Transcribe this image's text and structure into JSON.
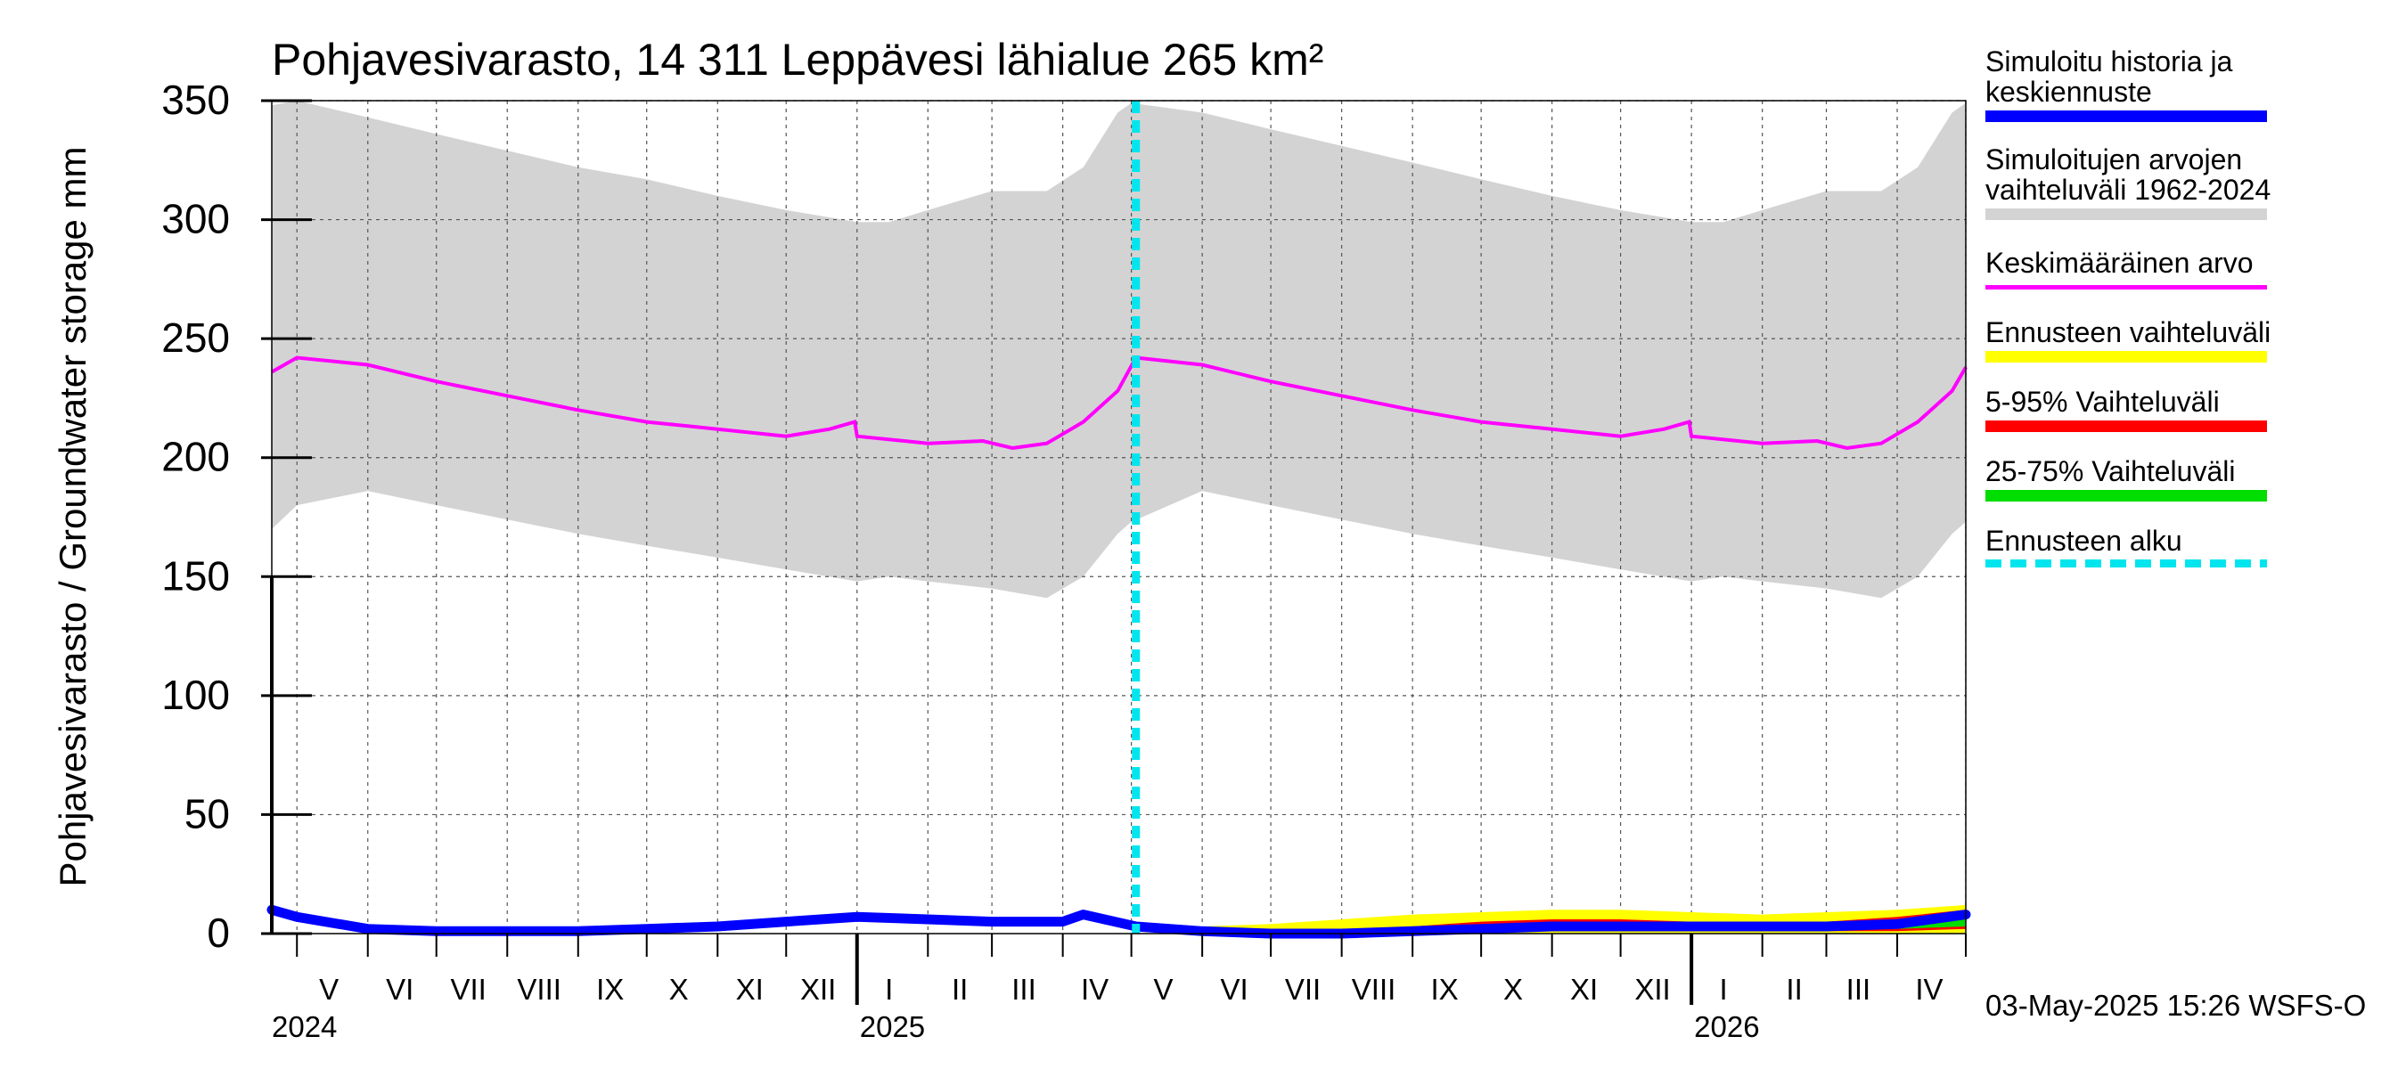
{
  "chart_data": {
    "type": "area",
    "title": "Pohjavesivarasto, 14 311 Leppävesi lähialue 265 km²",
    "ylabel": "Pohjavesivarasto / Groundwater storage   mm",
    "ylim": [
      0,
      350
    ],
    "yticks": [
      0,
      50,
      100,
      150,
      200,
      250,
      300,
      350
    ],
    "x_range": [
      "2024-04-20",
      "2026-05-01"
    ],
    "month_labels": [
      {
        "label": "V",
        "date": "2024-05-15"
      },
      {
        "label": "VI",
        "date": "2024-06-15"
      },
      {
        "label": "VII",
        "date": "2024-07-15"
      },
      {
        "label": "VIII",
        "date": "2024-08-15"
      },
      {
        "label": "IX",
        "date": "2024-09-15"
      },
      {
        "label": "X",
        "date": "2024-10-15"
      },
      {
        "label": "XI",
        "date": "2024-11-15"
      },
      {
        "label": "XII",
        "date": "2024-12-15"
      },
      {
        "label": "I",
        "date": "2025-01-15"
      },
      {
        "label": "II",
        "date": "2025-02-15"
      },
      {
        "label": "III",
        "date": "2025-03-15"
      },
      {
        "label": "IV",
        "date": "2025-04-15"
      },
      {
        "label": "V",
        "date": "2025-05-15"
      },
      {
        "label": "VI",
        "date": "2025-06-15"
      },
      {
        "label": "VII",
        "date": "2025-07-15"
      },
      {
        "label": "VIII",
        "date": "2025-08-15"
      },
      {
        "label": "IX",
        "date": "2025-09-15"
      },
      {
        "label": "X",
        "date": "2025-10-15"
      },
      {
        "label": "XI",
        "date": "2025-11-15"
      },
      {
        "label": "XII",
        "date": "2025-12-15"
      },
      {
        "label": "I",
        "date": "2026-01-15"
      },
      {
        "label": "II",
        "date": "2026-02-15"
      },
      {
        "label": "III",
        "date": "2026-03-15"
      },
      {
        "label": "IV",
        "date": "2026-04-15"
      }
    ],
    "month_boundaries": [
      "2024-05-01",
      "2024-06-01",
      "2024-07-01",
      "2024-08-01",
      "2024-09-01",
      "2024-10-01",
      "2024-11-01",
      "2024-12-01",
      "2025-01-01",
      "2025-02-01",
      "2025-03-01",
      "2025-04-01",
      "2025-05-01",
      "2025-06-01",
      "2025-07-01",
      "2025-08-01",
      "2025-09-01",
      "2025-10-01",
      "2025-11-01",
      "2025-12-01",
      "2026-01-01",
      "2026-02-01",
      "2026-03-01",
      "2026-04-01",
      "2026-05-01"
    ],
    "year_labels": [
      {
        "label": "2024",
        "date": "2024-04-20"
      },
      {
        "label": "2025",
        "date": "2025-01-01"
      },
      {
        "label": "2026",
        "date": "2026-01-01"
      }
    ],
    "forecast_start": "2025-05-03",
    "series": [
      {
        "name": "Simuloitujen arvojen vaihteluväli 1962-2024",
        "color": "#d3d3d3",
        "x": [
          "2024-04-20",
          "2024-05-01",
          "2024-06-01",
          "2024-07-01",
          "2024-08-01",
          "2024-09-01",
          "2024-10-01",
          "2024-11-01",
          "2024-12-01",
          "2025-01-01",
          "2025-01-15",
          "2025-02-01",
          "2025-03-01",
          "2025-03-25",
          "2025-04-10",
          "2025-04-25",
          "2025-05-01",
          "2025-06-01",
          "2025-07-01",
          "2025-08-01",
          "2025-09-01",
          "2025-10-01",
          "2025-11-01",
          "2025-12-01",
          "2026-01-01",
          "2026-01-15",
          "2026-02-01",
          "2026-03-01",
          "2026-03-25",
          "2026-04-10",
          "2026-04-25",
          "2026-05-01"
        ],
        "upper": [
          348,
          350,
          343,
          336,
          329,
          322,
          317,
          310,
          304,
          299,
          299,
          304,
          312,
          312,
          322,
          345,
          349,
          345,
          338,
          331,
          324,
          317,
          310,
          304,
          299,
          299,
          304,
          312,
          312,
          322,
          345,
          349
        ],
        "lower": [
          170,
          180,
          186,
          180,
          174,
          168,
          163,
          158,
          153,
          148,
          150,
          148,
          145,
          141,
          150,
          168,
          173,
          186,
          180,
          174,
          168,
          163,
          158,
          153,
          148,
          150,
          148,
          145,
          141,
          150,
          168,
          173
        ]
      },
      {
        "name": "Keskimääräinen arvo",
        "color": "#ff00ff",
        "x": [
          "2024-04-20",
          "2024-05-01",
          "2024-06-01",
          "2024-07-01",
          "2024-08-01",
          "2024-09-01",
          "2024-10-01",
          "2024-11-01",
          "2024-12-01",
          "2024-12-20",
          "2024-12-31",
          "2025-01-01",
          "2025-02-01",
          "2025-02-25",
          "2025-03-10",
          "2025-03-25",
          "2025-04-10",
          "2025-04-25",
          "2025-05-03",
          "2025-06-01",
          "2025-07-01",
          "2025-08-01",
          "2025-09-01",
          "2025-10-01",
          "2025-11-01",
          "2025-12-01",
          "2025-12-20",
          "2025-12-31",
          "2026-01-01",
          "2026-02-01",
          "2026-02-25",
          "2026-03-10",
          "2026-03-25",
          "2026-04-10",
          "2026-04-25",
          "2026-05-01"
        ],
        "values": [
          236,
          242,
          239,
          232,
          226,
          220,
          215,
          212,
          209,
          212,
          215,
          209,
          206,
          207,
          204,
          206,
          215,
          228,
          242,
          239,
          232,
          226,
          220,
          215,
          212,
          209,
          212,
          215,
          209,
          206,
          207,
          204,
          206,
          215,
          228,
          238
        ]
      },
      {
        "name": "Ennusteen vaihteluväli",
        "color": "#ffff00",
        "x": [
          "2025-05-03",
          "2025-06-01",
          "2025-07-01",
          "2025-08-01",
          "2025-09-01",
          "2025-10-01",
          "2025-11-01",
          "2025-12-01",
          "2026-01-01",
          "2026-02-01",
          "2026-03-01",
          "2026-04-01",
          "2026-05-01"
        ],
        "upper": [
          4,
          3,
          4,
          6,
          8,
          9,
          10,
          10,
          9,
          8,
          9,
          10,
          12
        ],
        "lower": [
          1,
          0,
          0,
          0,
          0,
          0,
          0,
          0,
          0,
          0,
          0,
          0,
          0
        ]
      },
      {
        "name": "5-95% Vaihteluväli",
        "color": "#ff0000",
        "x": [
          "2025-05-03",
          "2025-06-01",
          "2025-07-01",
          "2025-08-01",
          "2025-09-01",
          "2025-10-01",
          "2025-11-01",
          "2025-12-01",
          "2026-01-01",
          "2026-02-01",
          "2026-03-01",
          "2026-04-01",
          "2026-05-01"
        ],
        "upper": [
          3,
          2,
          1,
          1,
          3,
          5,
          6,
          6,
          5,
          5,
          5,
          7,
          10
        ],
        "lower": [
          2,
          0,
          0,
          0,
          0,
          1,
          1,
          1,
          1,
          1,
          1,
          1,
          2
        ]
      },
      {
        "name": "25-75% Vaihteluväli",
        "color": "#00dd00",
        "x": [
          "2025-05-03",
          "2025-06-01",
          "2025-07-01",
          "2025-08-01",
          "2025-09-01",
          "2025-10-01",
          "2025-11-01",
          "2025-12-01",
          "2026-01-01",
          "2026-02-01",
          "2026-03-01",
          "2026-04-01",
          "2026-05-01"
        ],
        "upper": [
          3,
          1,
          0,
          1,
          2,
          3,
          4,
          4,
          4,
          3,
          3,
          4,
          7
        ],
        "lower": [
          2,
          0,
          0,
          0,
          1,
          2,
          2,
          2,
          2,
          2,
          2,
          2,
          3
        ]
      },
      {
        "name": "Simuloitu historia ja keskiennuste",
        "color": "#0000ff",
        "x": [
          "2024-04-20",
          "2024-05-01",
          "2024-06-01",
          "2024-07-01",
          "2024-08-01",
          "2024-09-01",
          "2024-10-01",
          "2024-11-01",
          "2024-12-01",
          "2025-01-01",
          "2025-02-01",
          "2025-03-01",
          "2025-04-01",
          "2025-04-10",
          "2025-05-03",
          "2025-06-01",
          "2025-07-01",
          "2025-08-01",
          "2025-09-01",
          "2025-10-01",
          "2025-11-01",
          "2025-12-01",
          "2026-01-01",
          "2026-02-01",
          "2026-03-01",
          "2026-04-01",
          "2026-05-01"
        ],
        "values": [
          10,
          7,
          2,
          1,
          1,
          1,
          2,
          3,
          5,
          7,
          6,
          5,
          5,
          8,
          3,
          1,
          0,
          0,
          1,
          2,
          3,
          3,
          3,
          3,
          3,
          4,
          8
        ]
      }
    ]
  },
  "legend": {
    "items": [
      {
        "label": "Simuloitu historia ja\nkeskiennuste",
        "color": "#0000ff",
        "style": "thick"
      },
      {
        "label": "Simuloitujen arvojen\nvaihteluväli 1962-2024",
        "color": "#d3d3d3",
        "style": "thick"
      },
      {
        "label": "Keskimääräinen arvo",
        "color": "#ff00ff",
        "style": "thin"
      },
      {
        "label": "Ennusteen vaihteluväli",
        "color": "#ffff00",
        "style": "thick"
      },
      {
        "label": "5-95% Vaihteluväli",
        "color": "#ff0000",
        "style": "thick"
      },
      {
        "label": "25-75% Vaihteluväli",
        "color": "#00dd00",
        "style": "thick"
      },
      {
        "label": "Ennusteen alku",
        "color": "#00e5ee",
        "style": "dashed"
      }
    ]
  },
  "footer": {
    "timestamp": "03-May-2025 15:26 WSFS-O"
  }
}
